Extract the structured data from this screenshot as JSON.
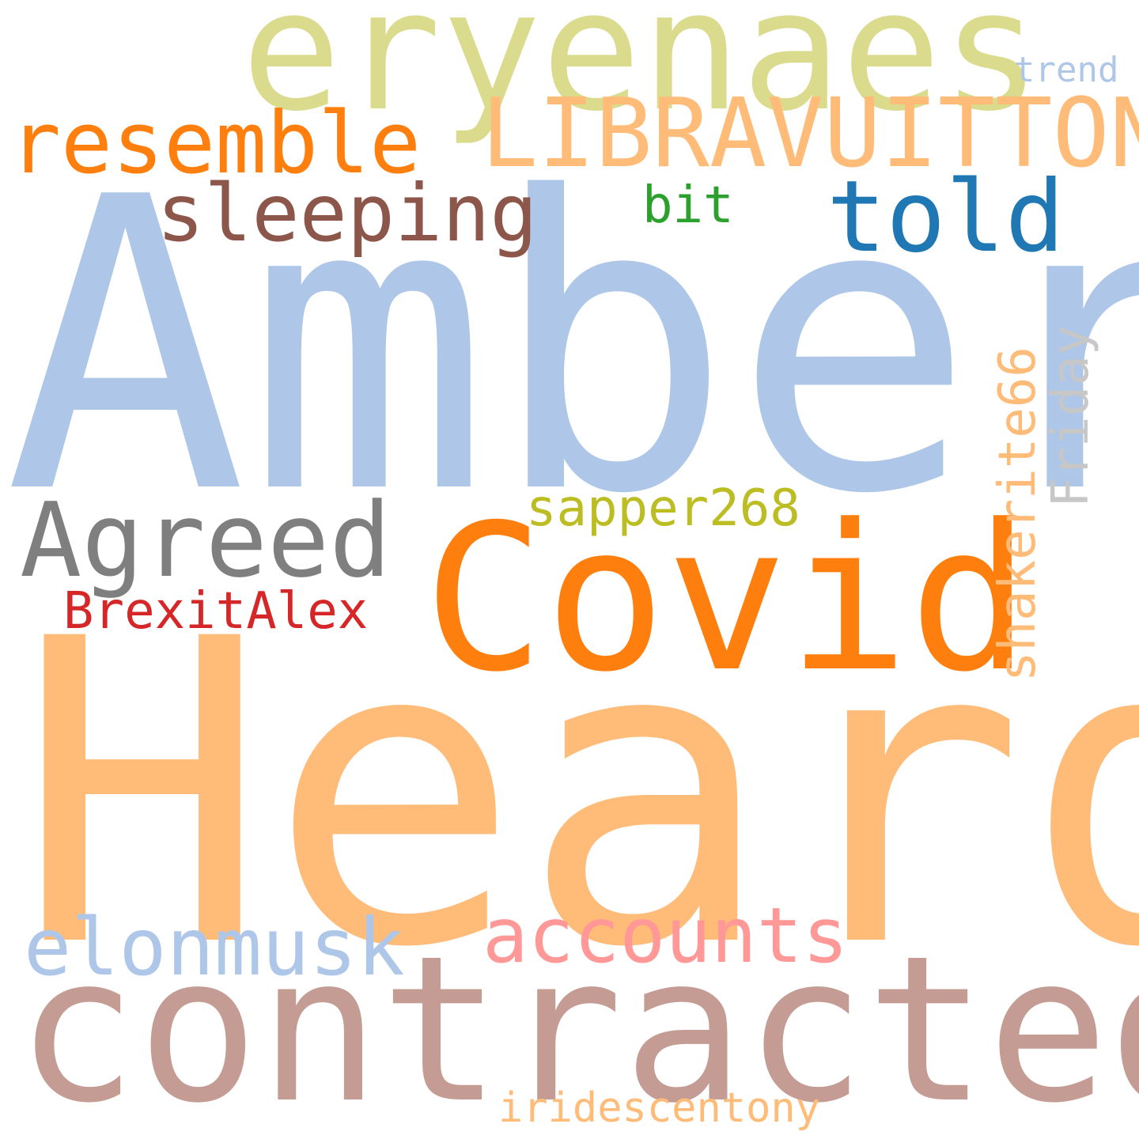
{
  "words": {
    "amber": {
      "text": "Amber",
      "color": "#aec7e8"
    },
    "heard": {
      "text": "Heard",
      "color": "#ffbb78"
    },
    "contracted": {
      "text": "contracted",
      "color": "#c49c94"
    },
    "eryenaes": {
      "text": "eryenaes",
      "color": "#dbdb8d"
    },
    "covid": {
      "text": "Covid",
      "color": "#ff7f0e"
    },
    "libravuitton": {
      "text": "LIBRAVUITTON",
      "color": "#ffbb78"
    },
    "resemble": {
      "text": "resemble",
      "color": "#ff7f0e"
    },
    "told": {
      "text": "told",
      "color": "#1f77b4"
    },
    "sleeping": {
      "text": "sleeping",
      "color": "#8c564b"
    },
    "agreed": {
      "text": "Agreed",
      "color": "#7f7f7f"
    },
    "elonmusk": {
      "text": "elonmusk",
      "color": "#aec7e8"
    },
    "accounts": {
      "text": "accounts",
      "color": "#ff9896"
    },
    "brexitalex": {
      "text": "BrexitAlex",
      "color": "#d62728"
    },
    "sapper268": {
      "text": "sapper268",
      "color": "#bcbd22"
    },
    "bit": {
      "text": "bit",
      "color": "#2ca02c"
    },
    "trend": {
      "text": "trend",
      "color": "#aec7e8"
    },
    "iridescentony": {
      "text": "iridescentony",
      "color": "#ffbb78"
    },
    "shakerite66": {
      "text": "shakerite66",
      "color": "#ffbb78"
    },
    "friday": {
      "text": "Friday",
      "color": "#c7c7c7"
    }
  }
}
